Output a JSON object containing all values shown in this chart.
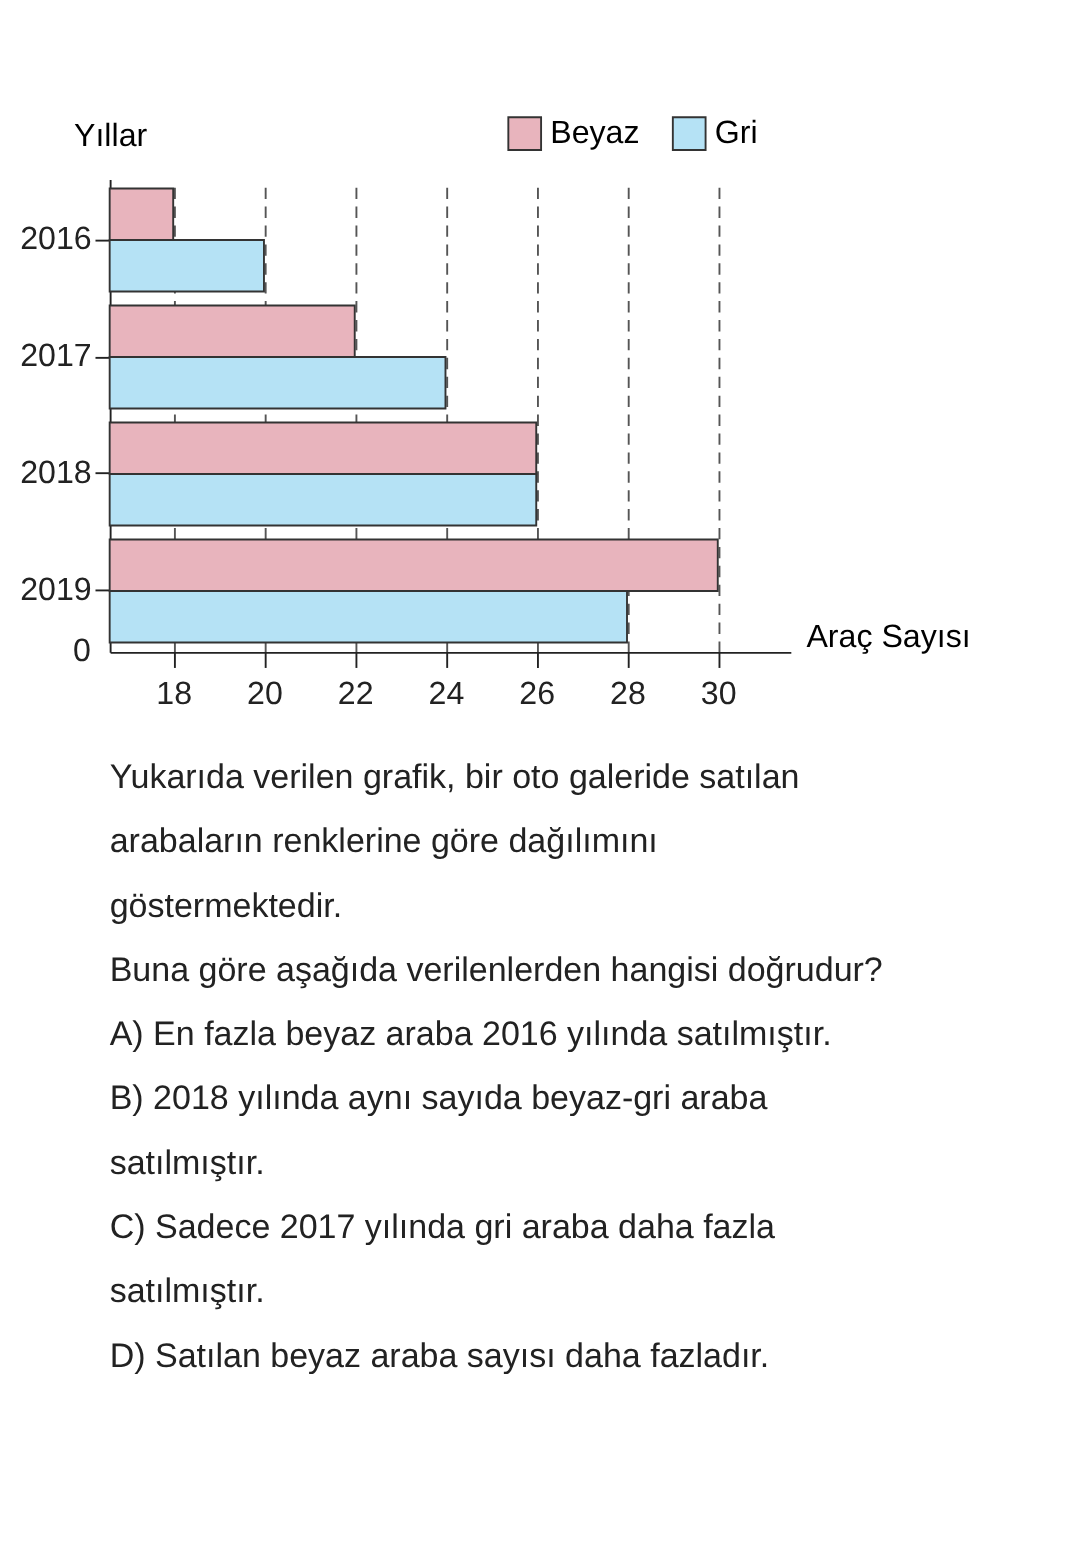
{
  "chart_data": {
    "type": "bar",
    "orientation": "horizontal",
    "ylabel": "Yıllar",
    "xlabel": "Araç Sayısı",
    "categories": [
      "2016",
      "2017",
      "2018",
      "2019"
    ],
    "series": [
      {
        "name": "Beyaz",
        "color": "#e8b4bd",
        "values": [
          18,
          22,
          26,
          30
        ]
      },
      {
        "name": "Gri",
        "color": "#b5e2f5",
        "values": [
          20,
          24,
          26,
          28
        ]
      }
    ],
    "xlim": [
      16.6,
      31.6
    ],
    "xticks": [
      18,
      20,
      22,
      24,
      26,
      28,
      30
    ],
    "grid": "x",
    "legend": "top right",
    "annotations": [
      "0",
      "Yukarıda verilen grafik, bir oto galeride satılan arabaların renklerine göre dağılımını göstermektedir.",
      "Buna göre aşağıda verilenlerden hangisi doğrudur?",
      "A) En fazla beyaz araba 2016 yılında satılmıştır.",
      "B) 2018 yılında aynı sayıda beyaz-gri araba satılmıştır.",
      "C) Sadece 2017 yılında gri araba daha fazla satılmıştır.",
      "D) Satılan beyaz araba sayısı daha fazladır."
    ]
  }
}
